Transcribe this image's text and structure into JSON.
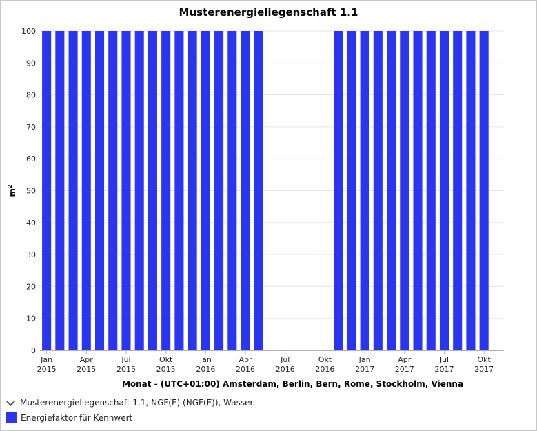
{
  "chart_data": {
    "type": "bar",
    "title": "Musterenergieliegenschaft 1.1",
    "xlabel": "Monat - (UTC+01:00) Amsterdam, Berlin, Bern, Rome, Stockholm, Vienna",
    "ylabel_base": "m",
    "ylabel_sup": "2",
    "ylim": [
      0,
      100
    ],
    "yticks": [
      0,
      10,
      20,
      30,
      40,
      50,
      60,
      70,
      80,
      90,
      100
    ],
    "grid": true,
    "legend_position": "bottom-left",
    "xtick_labels": [
      {
        "month": "Jan",
        "year": "2015",
        "index": 0
      },
      {
        "month": "Apr",
        "year": "2015",
        "index": 3
      },
      {
        "month": "Jul",
        "year": "2015",
        "index": 6
      },
      {
        "month": "Okt",
        "year": "2015",
        "index": 9
      },
      {
        "month": "Jan",
        "year": "2016",
        "index": 12
      },
      {
        "month": "Apr",
        "year": "2016",
        "index": 15
      },
      {
        "month": "Jul",
        "year": "2016",
        "index": 18
      },
      {
        "month": "Okt",
        "year": "2016",
        "index": 21
      },
      {
        "month": "Jan",
        "year": "2017",
        "index": 24
      },
      {
        "month": "Apr",
        "year": "2017",
        "index": 27
      },
      {
        "month": "Jul",
        "year": "2017",
        "index": 30
      },
      {
        "month": "Okt",
        "year": "2017",
        "index": 33
      }
    ],
    "categories": [
      "2015-01",
      "2015-02",
      "2015-03",
      "2015-04",
      "2015-05",
      "2015-06",
      "2015-07",
      "2015-08",
      "2015-09",
      "2015-10",
      "2015-11",
      "2015-12",
      "2016-01",
      "2016-02",
      "2016-03",
      "2016-04",
      "2016-05",
      "2016-06",
      "2016-07",
      "2016-08",
      "2016-09",
      "2016-10",
      "2016-11",
      "2016-12",
      "2017-01",
      "2017-02",
      "2017-03",
      "2017-04",
      "2017-05",
      "2017-06",
      "2017-07",
      "2017-08",
      "2017-09",
      "2017-10",
      "2017-11"
    ],
    "series": [
      {
        "name": "Energiefaktor für Kennwert",
        "color": "#2a35f0",
        "values": [
          100,
          100,
          100,
          100,
          100,
          100,
          100,
          100,
          100,
          100,
          100,
          100,
          100,
          100,
          100,
          100,
          100,
          null,
          null,
          null,
          null,
          null,
          100,
          100,
          100,
          100,
          100,
          100,
          100,
          100,
          100,
          100,
          100,
          100,
          null
        ]
      }
    ]
  },
  "legend": {
    "group_label": "Musterenergieliegenschaft 1.1, NGF(E) (NGF(E)), Wasser",
    "series_label": "Energiefaktor für Kennwert",
    "series_color": "#2a35f0",
    "group_icon": "chevron-down-icon"
  }
}
